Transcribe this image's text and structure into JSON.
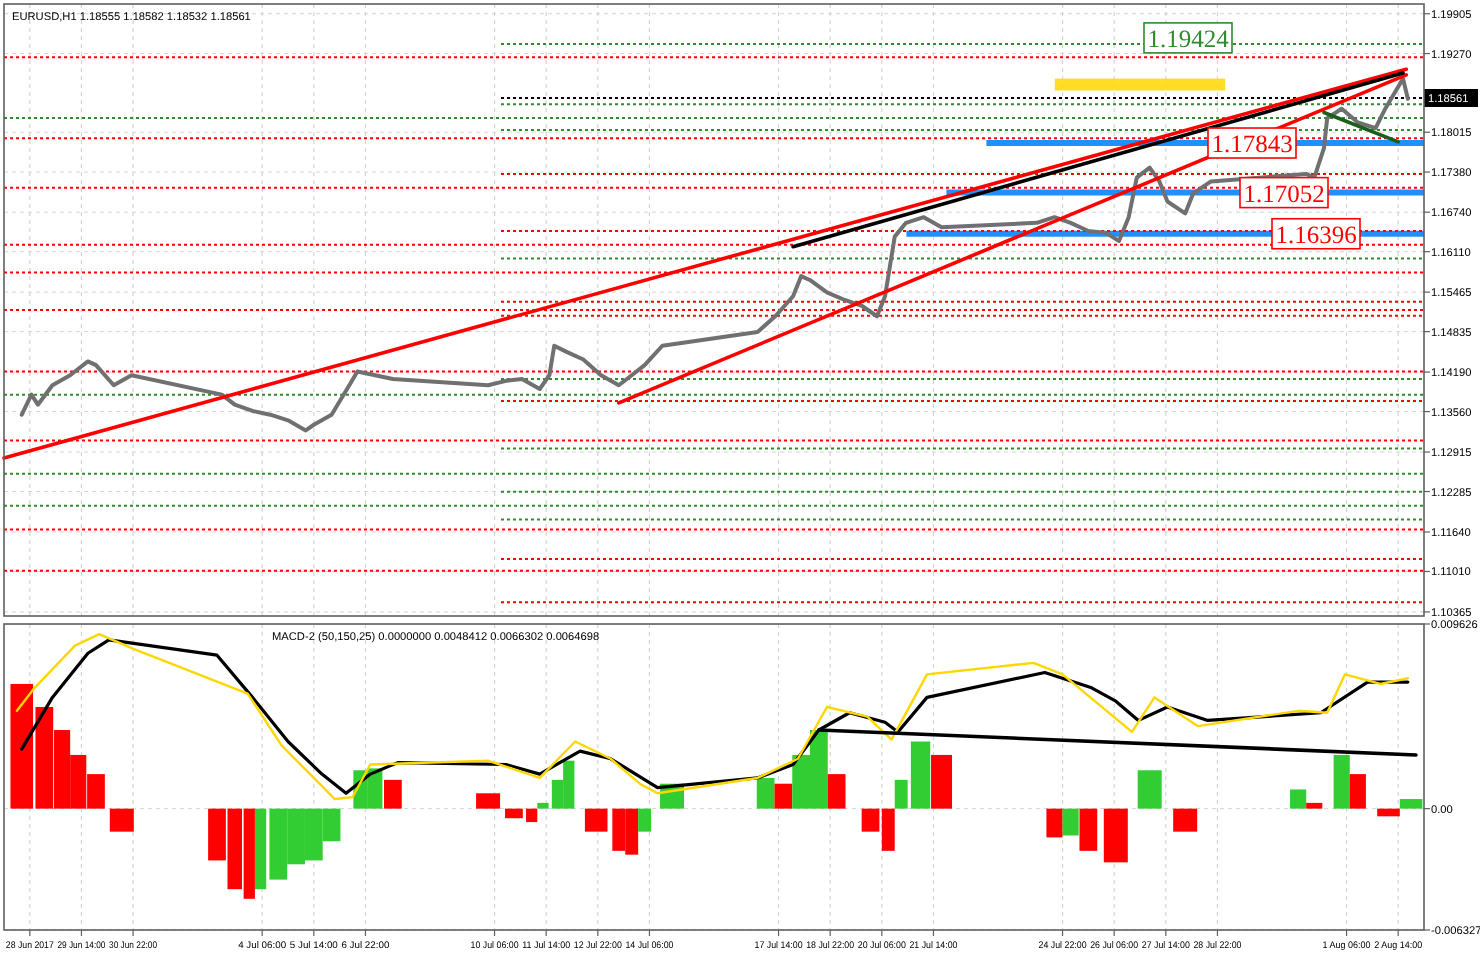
{
  "chart_data": [
    {
      "type": "line",
      "title": "EURUSD,H1 1.18555 1.18582 1.18532 1.18561",
      "grid": true,
      "tick_labels": "y",
      "xlim": [
        "2017-06-27T14:00",
        "2017-08-03T06:00"
      ],
      "xticks": [
        "2017-06-28T06:00",
        "2017-06-29T14:00",
        "2017-06-30T22:00",
        "2017-07-04T06:00",
        "2017-07-05T14:00",
        "2017-07-06T22:00",
        "2017-07-10T06:00",
        "2017-07-11T14:00",
        "2017-07-12T22:00",
        "2017-07-14T06:00",
        "2017-07-17T14:00",
        "2017-07-18T22:00",
        "2017-07-20T06:00",
        "2017-07-21T14:00",
        "2017-07-24T22:00",
        "2017-07-26T06:00",
        "2017-07-27T14:00",
        "2017-07-28T22:00",
        "2017-08-01T06:00",
        "2017-08-02T14:00"
      ],
      "ylim": [
        1.103,
        1.2006
      ],
      "yticks": [
        1.19905,
        {
          "value": 1.1927,
          "label": "1.19270"
        },
        1.18015,
        {
          "value": 1.1738,
          "label": "1.17380"
        },
        {
          "value": 1.1674,
          "label": "1.16740"
        },
        {
          "value": 1.1611,
          "label": "1.16110"
        },
        1.15465,
        1.14835,
        {
          "value": 1.1419,
          "label": "1.14190"
        },
        {
          "value": 1.1356,
          "label": "1.13560"
        },
        1.12915,
        1.12285,
        {
          "value": 1.1164,
          "label": "1.11640"
        },
        {
          "value": 1.1101,
          "label": "1.11010"
        },
        1.10365
      ],
      "bands": [
        {
          "axis": "y",
          "from": 1.1868,
          "to": 1.1887,
          "color": "#ffd700"
        }
      ],
      "ref_lines": [
        {
          "axis": "y",
          "value": 1.19424,
          "label": "1.19424",
          "color": "#2e8b2e",
          "line_style": "dotted"
        },
        {
          "axis": "y",
          "value": 1.17843,
          "label": "1.17843",
          "color": "#1e90ff",
          "line_style": "solid"
        },
        {
          "axis": "y",
          "value": 1.17052,
          "label": "1.17052",
          "color": "#1e90ff",
          "line_style": "solid"
        },
        {
          "axis": "y",
          "value": 1.16396,
          "label": "1.16396",
          "color": "#1e90ff",
          "line_style": "solid"
        },
        {
          "axis": "y",
          "value": 1.18561,
          "label": "1.18561",
          "color": "#000000",
          "line_style": "dotted"
        },
        {
          "axis": "y",
          "value": 1.1921,
          "color": "#ff0000",
          "line_style": "dotted"
        },
        {
          "axis": "y",
          "value": 1.1846,
          "color": "#2e8b2e",
          "line_style": "dotted"
        },
        {
          "axis": "y",
          "value": 1.1824,
          "color": "#2e8b2e",
          "line_style": "dotted"
        },
        {
          "axis": "y",
          "value": 1.1805,
          "color": "#2e8b2e",
          "line_style": "dotted"
        },
        {
          "axis": "y",
          "value": 1.1792,
          "color": "#ff0000",
          "line_style": "dotted"
        },
        {
          "axis": "y",
          "value": 1.1735,
          "color": "#ff0000",
          "line_style": "dotted"
        },
        {
          "axis": "y",
          "value": 1.1713,
          "color": "#ff0000",
          "line_style": "dotted"
        },
        {
          "axis": "y",
          "value": 1.1644,
          "color": "#ff0000",
          "line_style": "dotted"
        },
        {
          "axis": "y",
          "value": 1.1622,
          "color": "#ff0000",
          "line_style": "dotted"
        },
        {
          "axis": "y",
          "value": 1.16,
          "color": "#2e8b2e",
          "line_style": "dotted"
        },
        {
          "axis": "y",
          "value": 1.1578,
          "color": "#ff0000",
          "line_style": "dotted"
        },
        {
          "axis": "y",
          "value": 1.1531,
          "color": "#ff0000",
          "line_style": "dotted"
        },
        {
          "axis": "y",
          "value": 1.1518,
          "color": "#ff0000",
          "line_style": "dotted"
        },
        {
          "axis": "y",
          "value": 1.1509,
          "color": "#ff0000",
          "line_style": "dotted"
        },
        {
          "axis": "y",
          "value": 1.142,
          "color": "#ff0000",
          "line_style": "dotted"
        },
        {
          "axis": "y",
          "value": 1.1408,
          "color": "#2e8b2e",
          "line_style": "dotted"
        },
        {
          "axis": "y",
          "value": 1.1383,
          "color": "#2e8b2e",
          "line_style": "dotted"
        },
        {
          "axis": "y",
          "value": 1.1373,
          "color": "#ff0000",
          "line_style": "dotted"
        },
        {
          "axis": "y",
          "value": 1.131,
          "color": "#ff0000",
          "line_style": "dotted"
        },
        {
          "axis": "y",
          "value": 1.1297,
          "color": "#2e8b2e",
          "line_style": "dotted"
        },
        {
          "axis": "y",
          "value": 1.1257,
          "color": "#2e8b2e",
          "line_style": "dotted"
        },
        {
          "axis": "y",
          "value": 1.1228,
          "color": "#2e8b2e",
          "line_style": "dotted"
        },
        {
          "axis": "y",
          "value": 1.1206,
          "color": "#2e8b2e",
          "line_style": "dotted"
        },
        {
          "axis": "y",
          "value": 1.1184,
          "color": "#2e8b2e",
          "line_style": "dotted"
        },
        {
          "axis": "y",
          "value": 1.1168,
          "color": "#ff0000",
          "line_style": "dotted"
        },
        {
          "axis": "y",
          "value": 1.1121,
          "color": "#ff0000",
          "line_style": "dotted"
        },
        {
          "axis": "y",
          "value": 1.1102,
          "color": "#ff0000",
          "line_style": "dotted"
        },
        {
          "axis": "y",
          "value": 1.1052,
          "color": "#ff0000",
          "line_style": "dotted"
        }
      ],
      "series": [
        {
          "color": "#707070",
          "x": [
            "2017-06-28T01:00",
            "2017-06-28T07:00",
            "2017-06-28T11:00",
            "2017-06-28T20:00",
            "2017-06-29T07:00",
            "2017-06-29T18:00",
            "2017-06-29T23:00",
            "2017-06-30T10:00",
            "2017-06-30T21:00",
            "2017-07-03T05:00",
            "2017-07-03T13:00",
            "2017-07-04T00:00",
            "2017-07-04T11:00",
            "2017-07-04T22:00",
            "2017-07-05T09:00",
            "2017-07-05T14:00",
            "2017-07-06T01:00",
            "2017-07-06T12:00",
            "2017-07-06T17:00",
            "2017-07-07T04:00",
            "2017-07-07T15:00",
            "2017-07-10T02:00",
            "2017-07-10T13:00",
            "2017-07-10T23:00",
            "2017-07-11T10:00",
            "2017-07-11T16:00",
            "2017-07-11T19:00",
            "2017-07-12T02:00",
            "2017-07-12T13:00",
            "2017-07-13T00:00",
            "2017-07-13T11:00",
            "2017-07-13T19:00",
            "2017-07-14T03:00",
            "2017-07-14T14:00",
            "2017-07-17T01:00",
            "2017-07-17T12:00",
            "2017-07-17T23:00",
            "2017-07-18T04:00",
            "2017-07-18T10:00",
            "2017-07-18T20:00",
            "2017-07-19T07:00",
            "2017-07-19T18:00",
            "2017-07-20T03:00",
            "2017-07-20T08:00",
            "2017-07-20T14:00",
            "2017-07-20T21:00",
            "2017-07-21T08:00",
            "2017-07-21T19:00",
            "2017-07-24T06:00",
            "2017-07-24T17:00",
            "2017-07-25T03:00",
            "2017-07-25T14:00",
            "2017-07-26T01:00",
            "2017-07-26T09:00",
            "2017-07-26T15:00",
            "2017-07-26T20:00",
            "2017-07-27T04:00",
            "2017-07-27T10:00",
            "2017-07-27T15:00",
            "2017-07-28T02:00",
            "2017-07-28T07:00",
            "2017-07-28T18:00",
            "2017-07-31T05:00",
            "2017-07-31T10:00",
            "2017-07-31T16:00",
            "2017-07-31T18:00",
            "2017-08-01T03:00",
            "2017-08-01T13:00",
            "2017-08-02T00:00",
            "2017-08-02T06:00",
            "2017-08-02T11:00",
            "2017-08-02T17:00",
            "2017-08-02T20:00"
          ],
          "values": [
            1.1351,
            1.1383,
            1.1367,
            1.1398,
            1.1414,
            1.1436,
            1.143,
            1.1398,
            1.1414,
            1.1383,
            1.1367,
            1.1357,
            1.1351,
            1.1342,
            1.1326,
            1.1335,
            1.1351,
            1.1398,
            1.142,
            1.1414,
            1.1408,
            1.1398,
            1.1405,
            1.1408,
            1.1392,
            1.1414,
            1.1461,
            1.1452,
            1.1439,
            1.1414,
            1.1398,
            1.1414,
            1.143,
            1.1461,
            1.1483,
            1.1508,
            1.154,
            1.1572,
            1.1565,
            1.1546,
            1.1534,
            1.1524,
            1.1508,
            1.154,
            1.1635,
            1.1657,
            1.1666,
            1.165,
            1.1657,
            1.1666,
            1.1657,
            1.1644,
            1.1641,
            1.1628,
            1.1666,
            1.1729,
            1.1745,
            1.1723,
            1.1691,
            1.1672,
            1.1704,
            1.1723,
            1.1735,
            1.1729,
            1.1776,
            1.1824,
            1.1839,
            1.1817,
            1.1808,
            1.1839,
            1.1861,
            1.1887,
            1.1855
          ]
        },
        {
          "color": "#ff0000",
          "x": [
            "2017-06-27T14:00",
            "2017-08-02T19:00"
          ],
          "values": [
            1.1282,
            1.1902
          ]
        },
        {
          "color": "#ff0000",
          "x": [
            "2017-07-13T11:00",
            "2017-08-02T19:00"
          ],
          "values": [
            1.137,
            1.1893
          ]
        },
        {
          "color": "#000000",
          "x": [
            "2017-07-17T23:00",
            "2017-08-02T17:00"
          ],
          "values": [
            1.1619,
            1.1896
          ]
        },
        {
          "color": "#1a5e1a",
          "x": [
            "2017-07-31T16:00",
            "2017-08-02T14:00"
          ],
          "values": [
            1.1833,
            1.1786
          ]
        }
      ]
    },
    {
      "type": "bar",
      "title": "MACD-2 (50,150,25) 0.0000000 0.0048412 0.0066302 0.0064698",
      "grid": true,
      "xlim": [
        "2017-06-27T14:00",
        "2017-08-03T06:00"
      ],
      "xticks": [
        {
          "value": "2017-06-28T06:00",
          "label": "28 Jun 2017"
        },
        {
          "value": "2017-06-29T14:00",
          "label": "29 Jun 14:00"
        },
        {
          "value": "2017-06-30T22:00",
          "label": "30 Jun 22:00"
        },
        {
          "value": "2017-07-04T06:00",
          "label": "4 Jul 06:00"
        },
        {
          "value": "2017-07-05T14:00",
          "label": "5 Jul 14:00"
        },
        {
          "value": "2017-07-06T22:00",
          "label": "6 Jul 22:00"
        },
        {
          "value": "2017-07-10T06:00",
          "label": "10 Jul 06:00"
        },
        {
          "value": "2017-07-11T14:00",
          "label": "11 Jul 14:00"
        },
        {
          "value": "2017-07-12T22:00",
          "label": "12 Jul 22:00"
        },
        {
          "value": "2017-07-14T06:00",
          "label": "14 Jul 06:00"
        },
        {
          "value": "2017-07-17T14:00",
          "label": "17 Jul 14:00"
        },
        {
          "value": "2017-07-18T22:00",
          "label": "18 Jul 22:00"
        },
        {
          "value": "2017-07-20T06:00",
          "label": "20 Jul 06:00"
        },
        {
          "value": "2017-07-21T14:00",
          "label": "21 Jul 14:00"
        },
        {
          "value": "2017-07-24T22:00",
          "label": "24 Jul 22:00"
        },
        {
          "value": "2017-07-26T06:00",
          "label": "26 Jul 06:00"
        },
        {
          "value": "2017-07-27T14:00",
          "label": "27 Jul 14:00"
        },
        {
          "value": "2017-07-28T22:00",
          "label": "28 Jul 22:00"
        },
        {
          "value": "2017-08-01T06:00",
          "label": "1 Aug 06:00"
        },
        {
          "value": "2017-08-02T14:00",
          "label": "2 Aug 14:00"
        }
      ],
      "ylim": [
        -0.006327,
        0.009626
      ],
      "yticks": [
        -0.006327,
        {
          "value": 0,
          "label": "0.00"
        },
        0.009626
      ],
      "series": [
        {
          "x": [
            "2017-06-28T01:00",
            "2017-06-28T15:00",
            "2017-06-29T02:00",
            "2017-06-29T12:00",
            "2017-06-29T23:00",
            "2017-06-30T15:00",
            "2017-07-03T02:00",
            "2017-07-03T13:00",
            "2017-07-03T22:00",
            "2017-07-04T05:00",
            "2017-07-04T16:00",
            "2017-07-05T03:00",
            "2017-07-05T14:00",
            "2017-07-06T01:00",
            "2017-07-06T19:00",
            "2017-07-07T04:00",
            "2017-07-07T15:00",
            "2017-07-10T02:00",
            "2017-07-10T18:00",
            "2017-07-11T05:00",
            "2017-07-11T12:00",
            "2017-07-11T21:00",
            "2017-07-12T04:00",
            "2017-07-12T21:00",
            "2017-07-13T11:00",
            "2017-07-13T19:00",
            "2017-07-14T03:00",
            "2017-07-14T20:00",
            "2017-07-17T06:00",
            "2017-07-17T17:00",
            "2017-07-18T04:00",
            "2017-07-18T15:00",
            "2017-07-19T02:00",
            "2017-07-19T23:00",
            "2017-07-20T10:00",
            "2017-07-20T18:00",
            "2017-07-21T06:00",
            "2017-07-21T19:00",
            "2017-07-24T17:00",
            "2017-07-25T03:00",
            "2017-07-25T14:00",
            "2017-07-26T07:00",
            "2017-07-27T04:00",
            "2017-07-28T02:00",
            "2017-07-31T00:00",
            "2017-07-31T10:00",
            "2017-08-01T03:00",
            "2017-08-01T13:00",
            "2017-08-02T08:00",
            "2017-08-02T22:00"
          ],
          "values": [
            0.0065,
            0.0053,
            0.0041,
            0.0028,
            0.0018,
            -0.0012,
            -0.0027,
            -0.0042,
            -0.0047,
            -0.0042,
            -0.0037,
            -0.0029,
            -0.0027,
            -0.0017,
            0.002,
            0.0021,
            0.0015,
            0.0008,
            -0.0005,
            -0.0007,
            0.0003,
            0.0015,
            0.0025,
            -0.0012,
            -0.0022,
            -0.0024,
            -0.0012,
            0.0013,
            0.0016,
            0.0013,
            0.0028,
            0.0041,
            0.0018,
            -0.0012,
            -0.0022,
            0.0015,
            0.0035,
            0.0028,
            -0.0015,
            -0.0014,
            -0.0022,
            -0.0028,
            0.002,
            -0.0012,
            0.001,
            0.0003,
            0.0028,
            0.0018,
            -0.0004,
            0.0005
          ],
          "colors": [
            "#ff0000",
            "#ff0000",
            "#ff0000",
            "#ff0000",
            "#ff0000",
            "#ff0000",
            "#ff0000",
            "#ff0000",
            "#ff0000",
            "#32cd32",
            "#32cd32",
            "#32cd32",
            "#32cd32",
            "#32cd32",
            "#32cd32",
            "#32cd32",
            "#ff0000",
            "#ff0000",
            "#ff0000",
            "#ff0000",
            "#32cd32",
            "#32cd32",
            "#32cd32",
            "#ff0000",
            "#ff0000",
            "#ff0000",
            "#32cd32",
            "#32cd32",
            "#32cd32",
            "#ff0000",
            "#32cd32",
            "#32cd32",
            "#ff0000",
            "#ff0000",
            "#ff0000",
            "#32cd32",
            "#32cd32",
            "#ff0000",
            "#ff0000",
            "#32cd32",
            "#ff0000",
            "#ff0000",
            "#32cd32",
            "#ff0000",
            "#32cd32",
            "#ff0000",
            "#32cd32",
            "#ff0000",
            "#ff0000",
            "#32cd32"
          ]
        },
        {
          "type": "line",
          "color": "#000000",
          "x": [
            "2017-06-28T01:00",
            "2017-06-28T20:00",
            "2017-06-29T18:00",
            "2017-06-30T07:00",
            "2017-07-03T02:00",
            "2017-07-04T00:00",
            "2017-07-04T22:00",
            "2017-07-05T19:00",
            "2017-07-06T10:00",
            "2017-07-07T01:00",
            "2017-07-07T18:00",
            "2017-07-10T13:00",
            "2017-07-11T10:00",
            "2017-07-12T11:00",
            "2017-07-13T06:00",
            "2017-07-14T11:00",
            "2017-07-17T01:00",
            "2017-07-17T23:00",
            "2017-07-18T15:00",
            "2017-07-19T10:00",
            "2017-07-20T08:00",
            "2017-07-20T16:00",
            "2017-07-21T10:00",
            "2017-07-24T11:00",
            "2017-07-25T16:00",
            "2017-07-26T07:00",
            "2017-07-26T21:00",
            "2017-07-27T15:00",
            "2017-07-28T16:00",
            "2017-07-31T14:00",
            "2017-08-01T19:00",
            "2017-08-02T20:00"
          ],
          "values": [
            0.0031,
            0.0058,
            0.0081,
            0.0088,
            0.008,
            0.0058,
            0.0035,
            0.0018,
            0.0008,
            0.0018,
            0.0024,
            0.0023,
            0.0018,
            0.003,
            0.0026,
            0.0011,
            0.0016,
            0.0023,
            0.0041,
            0.005,
            0.0045,
            0.004,
            0.0058,
            0.0071,
            0.0063,
            0.0056,
            0.0046,
            0.0053,
            0.0046,
            0.005,
            0.0066,
            0.0066
          ]
        },
        {
          "type": "line",
          "color": "#ffd700",
          "x": [
            "2017-06-27T22:00",
            "2017-06-28T09:00",
            "2017-06-29T10:00",
            "2017-06-30T01:00",
            "2017-06-30T23:00",
            "2017-07-03T21:00",
            "2017-07-04T18:00",
            "2017-07-06T03:00",
            "2017-07-06T14:00",
            "2017-07-07T01:00",
            "2017-07-10T02:00",
            "2017-07-11T10:00",
            "2017-07-12T08:00",
            "2017-07-13T06:00",
            "2017-07-14T00:00",
            "2017-07-14T11:00",
            "2017-07-17T01:00",
            "2017-07-18T02:00",
            "2017-07-18T20:00",
            "2017-07-19T21:00",
            "2017-07-20T12:00",
            "2017-07-21T10:00",
            "2017-07-24T04:00",
            "2017-07-24T22:00",
            "2017-07-26T17:00",
            "2017-07-27T07:00",
            "2017-07-28T10:00",
            "2017-07-31T00:00",
            "2017-07-31T18:00",
            "2017-08-01T05:00",
            "2017-08-02T03:00",
            "2017-08-02T20:00"
          ],
          "values": [
            0.0051,
            0.0063,
            0.0085,
            0.0091,
            0.0083,
            0.006,
            0.0033,
            0.0005,
            0.0006,
            0.0023,
            0.0025,
            0.0016,
            0.0035,
            0.0026,
            0.0013,
            0.0008,
            0.0016,
            0.0026,
            0.0053,
            0.0048,
            0.0036,
            0.007,
            0.0076,
            0.007,
            0.004,
            0.0058,
            0.0043,
            0.0051,
            0.005,
            0.007,
            0.0065,
            0.0068
          ]
        },
        {
          "type": "line",
          "color": "#000000",
          "x": [
            "2017-07-18T15:00",
            "2017-08-03T01:00"
          ],
          "values": [
            0.0041,
            0.0028
          ]
        }
      ]
    }
  ]
}
